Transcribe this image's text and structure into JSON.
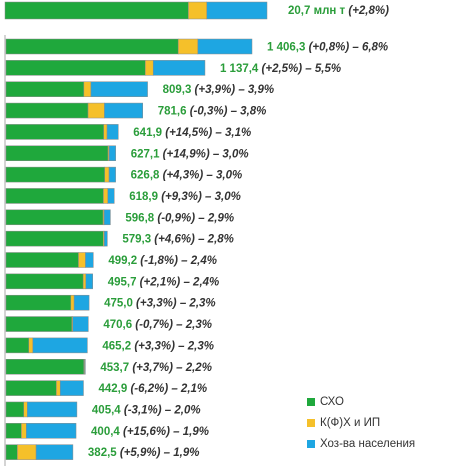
{
  "chart_data": {
    "type": "bar",
    "orientation": "horizontal",
    "stacked": true,
    "colors": {
      "skho": "#1fa83c",
      "kfh": "#f5c02a",
      "households": "#1ea6e2",
      "value_text": "#2a9d3a",
      "change_text": "#333333"
    },
    "legend": {
      "position": "bottom-right",
      "items": [
        {
          "label": "СХО",
          "color": "#1fa83c"
        },
        {
          "label": "К(Ф)Х и ИП",
          "color": "#f5c02a"
        },
        {
          "label": "Хоз-ва населения",
          "color": "#1ea6e2"
        }
      ]
    },
    "total": {
      "value": "20,7 млн т",
      "change": "(+2,8%)",
      "shares": [
        0.7,
        0.07,
        0.23
      ]
    },
    "rows": [
      {
        "value": "1 406,3",
        "change": "(+0,8%) – 6,8%",
        "total": 1406.3,
        "shares": [
          0.7,
          0.08,
          0.22
        ]
      },
      {
        "value": "1 137,4",
        "change": "(+2,5%) – 5,5%",
        "total": 1137.4,
        "shares": [
          0.7,
          0.04,
          0.26
        ]
      },
      {
        "value": "809,3",
        "change": "(+3,9%) – 3,9%",
        "total": 809.3,
        "shares": [
          0.55,
          0.05,
          0.4
        ]
      },
      {
        "value": "781,6",
        "change": "(-0,3%) – 3,8%",
        "total": 781.6,
        "shares": [
          0.6,
          0.12,
          0.28
        ]
      },
      {
        "value": "641,9",
        "change": "(+14,5%) – 3,1%",
        "total": 641.9,
        "shares": [
          0.87,
          0.03,
          0.1
        ]
      },
      {
        "value": "627,1",
        "change": "(+14,9%) – 3,0%",
        "total": 627.1,
        "shares": [
          0.93,
          0.01,
          0.06
        ]
      },
      {
        "value": "626,8",
        "change": "(+4,3%) – 3,0%",
        "total": 626.8,
        "shares": [
          0.9,
          0.04,
          0.06
        ]
      },
      {
        "value": "618,9",
        "change": "(+9,3%) – 3,0%",
        "total": 618.9,
        "shares": [
          0.9,
          0.04,
          0.06
        ]
      },
      {
        "value": "596,8",
        "change": "(-0,9%) – 2,9%",
        "total": 596.8,
        "shares": [
          0.93,
          0.01,
          0.06
        ]
      },
      {
        "value": "579,3",
        "change": "(+4,6%) – 2,8%",
        "total": 579.3,
        "shares": [
          0.96,
          0.01,
          0.03
        ]
      },
      {
        "value": "499,2",
        "change": "(-1,8%) – 2,4%",
        "total": 499.2,
        "shares": [
          0.83,
          0.08,
          0.09
        ]
      },
      {
        "value": "495,7",
        "change": "(+2,1%) – 2,4%",
        "total": 495.7,
        "shares": [
          0.89,
          0.03,
          0.08
        ]
      },
      {
        "value": "475,0",
        "change": "(+3,3%) – 2,3%",
        "total": 475.0,
        "shares": [
          0.78,
          0.04,
          0.18
        ]
      },
      {
        "value": "470,6",
        "change": "(-0,7%) – 2,3%",
        "total": 470.6,
        "shares": [
          0.8,
          0.01,
          0.19
        ]
      },
      {
        "value": "465,2",
        "change": "(+3,3%) – 2,3%",
        "total": 465.2,
        "shares": [
          0.28,
          0.05,
          0.67
        ]
      },
      {
        "value": "453,7",
        "change": "(+3,7%) – 2,2%",
        "total": 453.7,
        "shares": [
          0.98,
          0.01,
          0.01
        ]
      },
      {
        "value": "442,9",
        "change": "(-6,2%) – 2,1%",
        "total": 442.9,
        "shares": [
          0.65,
          0.05,
          0.3
        ]
      },
      {
        "value": "405,4",
        "change": "(-3,1%) – 2,0%",
        "total": 405.4,
        "shares": [
          0.25,
          0.05,
          0.7
        ]
      },
      {
        "value": "400,4",
        "change": "(+15,6%) – 1,9%",
        "total": 400.4,
        "shares": [
          0.22,
          0.07,
          0.71
        ]
      },
      {
        "value": "382,5",
        "change": "(+5,9%) – 1,9%",
        "total": 382.5,
        "shares": [
          0.17,
          0.28,
          0.55
        ]
      }
    ]
  }
}
